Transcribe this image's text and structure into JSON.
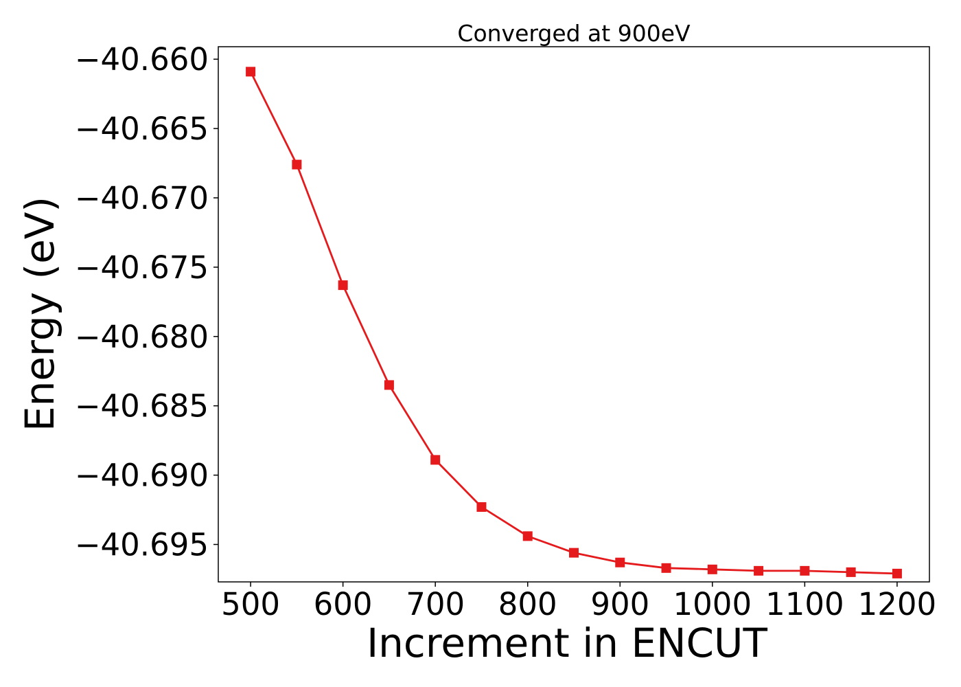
{
  "chart_data": {
    "type": "line",
    "title": "Converged at 900eV",
    "xlabel": "Increment in ENCUT",
    "ylabel": "Energy (eV)",
    "x": [
      500,
      550,
      600,
      650,
      700,
      750,
      800,
      850,
      900,
      950,
      1000,
      1050,
      1100,
      1150,
      1200
    ],
    "series": [
      {
        "values": [
          -40.6609,
          -40.6676,
          -40.6763,
          -40.6835,
          -40.6889,
          -40.6923,
          -40.6944,
          -40.6956,
          -40.6963,
          -40.6967,
          -40.6968,
          -40.6969,
          -40.6969,
          -40.697,
          -40.6971
        ],
        "color": "#e41a1c",
        "marker": "square"
      }
    ],
    "xticks": [
      "500",
      "600",
      "700",
      "800",
      "900",
      "1000",
      "1100",
      "1200"
    ],
    "yticks": [
      "−40.660",
      "−40.665",
      "−40.670",
      "−40.675",
      "−40.680",
      "−40.685",
      "−40.690",
      "−40.695"
    ],
    "xlim": [
      465,
      1235
    ],
    "ylim": [
      -40.6977,
      -40.6591
    ],
    "grid": false,
    "legend": false
  }
}
